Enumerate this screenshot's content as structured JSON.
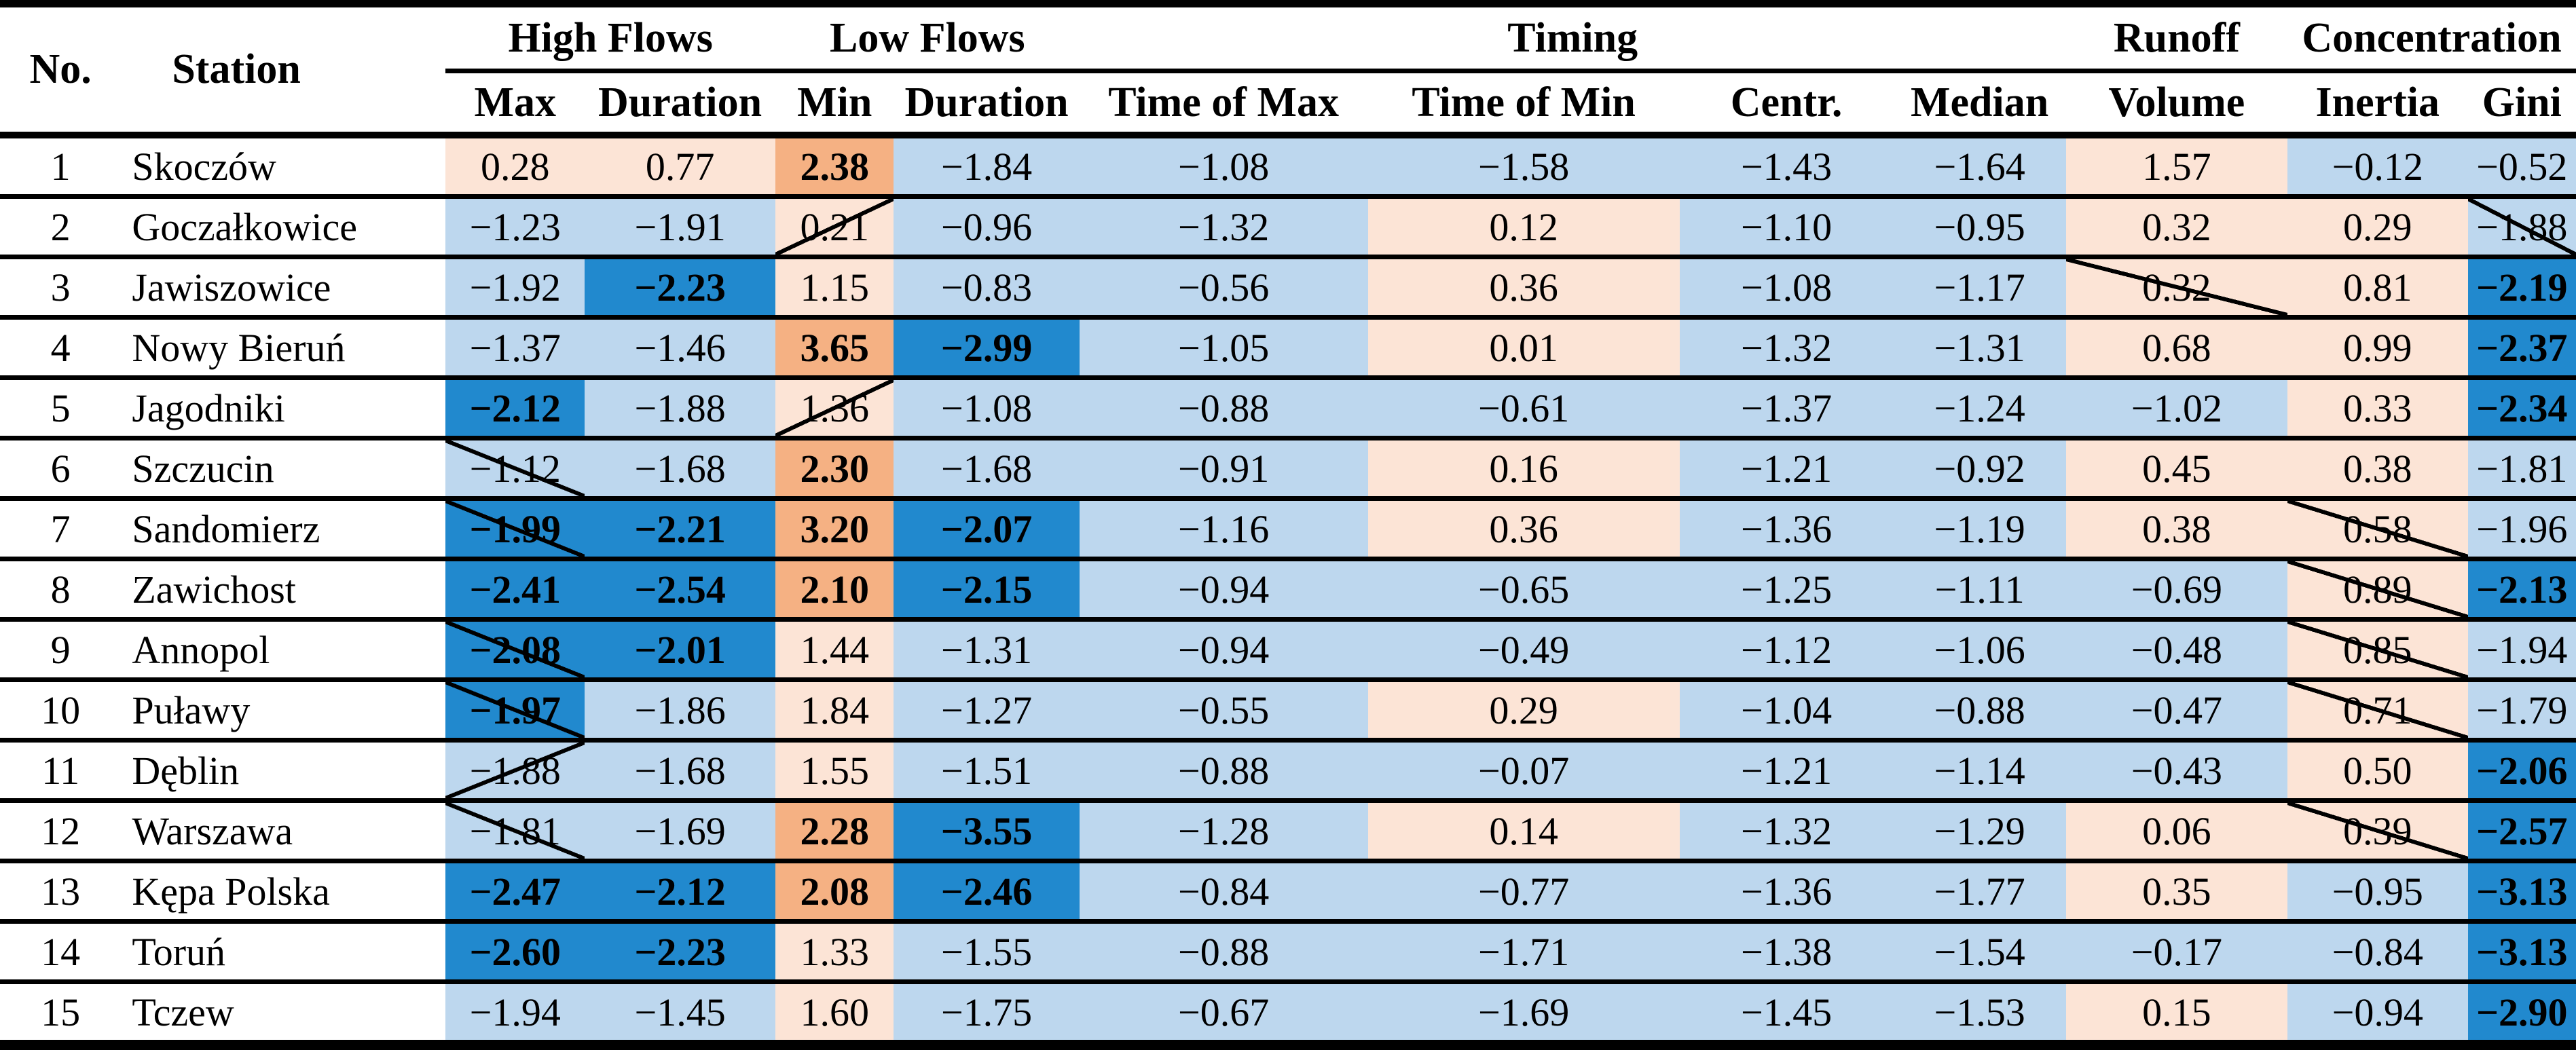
{
  "table": {
    "header": {
      "no": "No.",
      "station": "Station",
      "groups": [
        {
          "label": "High Flows",
          "span": 2
        },
        {
          "label": "Low Flows",
          "span": 2
        },
        {
          "label": "Timing",
          "span": 4
        },
        {
          "label": "Runoff",
          "span": 1
        },
        {
          "label": "Concentration",
          "span": 2
        }
      ],
      "columns": [
        "Max",
        "Duration",
        "Min",
        "Duration",
        "Time of Max",
        "Time of Min",
        "Centr.",
        "Median",
        "Volume",
        "Inertia",
        "Gini"
      ]
    },
    "cell_colors": {
      "lb": "#BDD7EE",
      "db": "#2189CE",
      "lp": "#FCE4D6",
      "do": "#F5B183"
    },
    "rows": [
      {
        "no": "1",
        "station": "Skoczów",
        "cells": [
          {
            "v": "0.28",
            "c": "lp"
          },
          {
            "v": "0.77",
            "c": "lp"
          },
          {
            "v": "2.38",
            "c": "do"
          },
          {
            "v": "−1.84",
            "c": "lb"
          },
          {
            "v": "−1.08",
            "c": "lb"
          },
          {
            "v": "−1.58",
            "c": "lb"
          },
          {
            "v": "−1.43",
            "c": "lb"
          },
          {
            "v": "−1.64",
            "c": "lb"
          },
          {
            "v": "1.57",
            "c": "lp"
          },
          {
            "v": "−0.12",
            "c": "lb"
          },
          {
            "v": "−0.52",
            "c": "lb"
          }
        ]
      },
      {
        "no": "2",
        "station": "Goczałkowice",
        "cells": [
          {
            "v": "−1.23",
            "c": "lb"
          },
          {
            "v": "−1.91",
            "c": "lb"
          },
          {
            "v": "0.21",
            "c": "lp",
            "s": "down"
          },
          {
            "v": "−0.96",
            "c": "lb"
          },
          {
            "v": "−1.32",
            "c": "lb"
          },
          {
            "v": "0.12",
            "c": "lp"
          },
          {
            "v": "−1.10",
            "c": "lb"
          },
          {
            "v": "−0.95",
            "c": "lb"
          },
          {
            "v": "0.32",
            "c": "lp"
          },
          {
            "v": "0.29",
            "c": "lp"
          },
          {
            "v": "−1.88",
            "c": "lb",
            "s": "up"
          }
        ]
      },
      {
        "no": "3",
        "station": "Jawiszowice",
        "cells": [
          {
            "v": "−1.92",
            "c": "lb"
          },
          {
            "v": "−2.23",
            "c": "db"
          },
          {
            "v": "1.15",
            "c": "lp"
          },
          {
            "v": "−0.83",
            "c": "lb"
          },
          {
            "v": "−0.56",
            "c": "lb"
          },
          {
            "v": "0.36",
            "c": "lp"
          },
          {
            "v": "−1.08",
            "c": "lb"
          },
          {
            "v": "−1.17",
            "c": "lb"
          },
          {
            "v": "0.32",
            "c": "lp",
            "s": "up"
          },
          {
            "v": "0.81",
            "c": "lp"
          },
          {
            "v": "−2.19",
            "c": "db"
          }
        ]
      },
      {
        "no": "4",
        "station": "Nowy Bieruń",
        "cells": [
          {
            "v": "−1.37",
            "c": "lb"
          },
          {
            "v": "−1.46",
            "c": "lb"
          },
          {
            "v": "3.65",
            "c": "do"
          },
          {
            "v": "−2.99",
            "c": "db"
          },
          {
            "v": "−1.05",
            "c": "lb"
          },
          {
            "v": "0.01",
            "c": "lp"
          },
          {
            "v": "−1.32",
            "c": "lb"
          },
          {
            "v": "−1.31",
            "c": "lb"
          },
          {
            "v": "0.68",
            "c": "lp"
          },
          {
            "v": "0.99",
            "c": "lp"
          },
          {
            "v": "−2.37",
            "c": "db"
          }
        ]
      },
      {
        "no": "5",
        "station": "Jagodniki",
        "cells": [
          {
            "v": "−2.12",
            "c": "db"
          },
          {
            "v": "−1.88",
            "c": "lb"
          },
          {
            "v": "1.36",
            "c": "lp",
            "s": "down"
          },
          {
            "v": "−1.08",
            "c": "lb"
          },
          {
            "v": "−0.88",
            "c": "lb"
          },
          {
            "v": "−0.61",
            "c": "lb"
          },
          {
            "v": "−1.37",
            "c": "lb"
          },
          {
            "v": "−1.24",
            "c": "lb"
          },
          {
            "v": "−1.02",
            "c": "lb"
          },
          {
            "v": "0.33",
            "c": "lp"
          },
          {
            "v": "−2.34",
            "c": "db"
          }
        ]
      },
      {
        "no": "6",
        "station": "Szczucin",
        "cells": [
          {
            "v": "−1.12",
            "c": "lb",
            "s": "up"
          },
          {
            "v": "−1.68",
            "c": "lb"
          },
          {
            "v": "2.30",
            "c": "do"
          },
          {
            "v": "−1.68",
            "c": "lb"
          },
          {
            "v": "−0.91",
            "c": "lb"
          },
          {
            "v": "0.16",
            "c": "lp"
          },
          {
            "v": "−1.21",
            "c": "lb"
          },
          {
            "v": "−0.92",
            "c": "lb"
          },
          {
            "v": "0.45",
            "c": "lp"
          },
          {
            "v": "0.38",
            "c": "lp"
          },
          {
            "v": "−1.81",
            "c": "lb"
          }
        ]
      },
      {
        "no": "7",
        "station": "Sandomierz",
        "cells": [
          {
            "v": "−1.99",
            "c": "db",
            "s": "up"
          },
          {
            "v": "−2.21",
            "c": "db"
          },
          {
            "v": "3.20",
            "c": "do"
          },
          {
            "v": "−2.07",
            "c": "db"
          },
          {
            "v": "−1.16",
            "c": "lb"
          },
          {
            "v": "0.36",
            "c": "lp"
          },
          {
            "v": "−1.36",
            "c": "lb"
          },
          {
            "v": "−1.19",
            "c": "lb"
          },
          {
            "v": "0.38",
            "c": "lp"
          },
          {
            "v": "0.58",
            "c": "lp",
            "s": "up"
          },
          {
            "v": "−1.96",
            "c": "lb"
          }
        ]
      },
      {
        "no": "8",
        "station": "Zawichost",
        "cells": [
          {
            "v": "−2.41",
            "c": "db"
          },
          {
            "v": "−2.54",
            "c": "db"
          },
          {
            "v": "2.10",
            "c": "do"
          },
          {
            "v": "−2.15",
            "c": "db"
          },
          {
            "v": "−0.94",
            "c": "lb"
          },
          {
            "v": "−0.65",
            "c": "lb"
          },
          {
            "v": "−1.25",
            "c": "lb"
          },
          {
            "v": "−1.11",
            "c": "lb"
          },
          {
            "v": "−0.69",
            "c": "lb"
          },
          {
            "v": "0.89",
            "c": "lp",
            "s": "up"
          },
          {
            "v": "−2.13",
            "c": "db"
          }
        ]
      },
      {
        "no": "9",
        "station": "Annopol",
        "cells": [
          {
            "v": "−2.08",
            "c": "db",
            "s": "up"
          },
          {
            "v": "−2.01",
            "c": "db"
          },
          {
            "v": "1.44",
            "c": "lp"
          },
          {
            "v": "−1.31",
            "c": "lb"
          },
          {
            "v": "−0.94",
            "c": "lb"
          },
          {
            "v": "−0.49",
            "c": "lb"
          },
          {
            "v": "−1.12",
            "c": "lb"
          },
          {
            "v": "−1.06",
            "c": "lb"
          },
          {
            "v": "−0.48",
            "c": "lb"
          },
          {
            "v": "0.85",
            "c": "lp",
            "s": "up"
          },
          {
            "v": "−1.94",
            "c": "lb"
          }
        ]
      },
      {
        "no": "10",
        "station": "Puławy",
        "cells": [
          {
            "v": "−1.97",
            "c": "db",
            "s": "up"
          },
          {
            "v": "−1.86",
            "c": "lb"
          },
          {
            "v": "1.84",
            "c": "lp"
          },
          {
            "v": "−1.27",
            "c": "lb"
          },
          {
            "v": "−0.55",
            "c": "lb"
          },
          {
            "v": "0.29",
            "c": "lp"
          },
          {
            "v": "−1.04",
            "c": "lb"
          },
          {
            "v": "−0.88",
            "c": "lb"
          },
          {
            "v": "−0.47",
            "c": "lb"
          },
          {
            "v": "0.71",
            "c": "lp",
            "s": "up"
          },
          {
            "v": "−1.79",
            "c": "lb"
          }
        ]
      },
      {
        "no": "11",
        "station": "Dęblin",
        "cells": [
          {
            "v": "−1.88",
            "c": "lb",
            "s": "down"
          },
          {
            "v": "−1.68",
            "c": "lb"
          },
          {
            "v": "1.55",
            "c": "lp"
          },
          {
            "v": "−1.51",
            "c": "lb"
          },
          {
            "v": "−0.88",
            "c": "lb"
          },
          {
            "v": "−0.07",
            "c": "lb"
          },
          {
            "v": "−1.21",
            "c": "lb"
          },
          {
            "v": "−1.14",
            "c": "lb"
          },
          {
            "v": "−0.43",
            "c": "lb"
          },
          {
            "v": "0.50",
            "c": "lp"
          },
          {
            "v": "−2.06",
            "c": "db"
          }
        ]
      },
      {
        "no": "12",
        "station": "Warszawa",
        "cells": [
          {
            "v": "−1.81",
            "c": "lb",
            "s": "up"
          },
          {
            "v": "−1.69",
            "c": "lb"
          },
          {
            "v": "2.28",
            "c": "do"
          },
          {
            "v": "−3.55",
            "c": "db"
          },
          {
            "v": "−1.28",
            "c": "lb"
          },
          {
            "v": "0.14",
            "c": "lp"
          },
          {
            "v": "−1.32",
            "c": "lb"
          },
          {
            "v": "−1.29",
            "c": "lb"
          },
          {
            "v": "0.06",
            "c": "lp"
          },
          {
            "v": "0.39",
            "c": "lp",
            "s": "up"
          },
          {
            "v": "−2.57",
            "c": "db"
          }
        ]
      },
      {
        "no": "13",
        "station": "Kępa Polska",
        "cells": [
          {
            "v": "−2.47",
            "c": "db"
          },
          {
            "v": "−2.12",
            "c": "db"
          },
          {
            "v": "2.08",
            "c": "do"
          },
          {
            "v": "−2.46",
            "c": "db"
          },
          {
            "v": "−0.84",
            "c": "lb"
          },
          {
            "v": "−0.77",
            "c": "lb"
          },
          {
            "v": "−1.36",
            "c": "lb"
          },
          {
            "v": "−1.77",
            "c": "lb"
          },
          {
            "v": "0.35",
            "c": "lp"
          },
          {
            "v": "−0.95",
            "c": "lb"
          },
          {
            "v": "−3.13",
            "c": "db"
          }
        ]
      },
      {
        "no": "14",
        "station": "Toruń",
        "cells": [
          {
            "v": "−2.60",
            "c": "db"
          },
          {
            "v": "−2.23",
            "c": "db"
          },
          {
            "v": "1.33",
            "c": "lp"
          },
          {
            "v": "−1.55",
            "c": "lb"
          },
          {
            "v": "−0.88",
            "c": "lb"
          },
          {
            "v": "−1.71",
            "c": "lb"
          },
          {
            "v": "−1.38",
            "c": "lb"
          },
          {
            "v": "−1.54",
            "c": "lb"
          },
          {
            "v": "−0.17",
            "c": "lb"
          },
          {
            "v": "−0.84",
            "c": "lb"
          },
          {
            "v": "−3.13",
            "c": "db"
          }
        ]
      },
      {
        "no": "15",
        "station": "Tczew",
        "cells": [
          {
            "v": "−1.94",
            "c": "lb"
          },
          {
            "v": "−1.45",
            "c": "lb"
          },
          {
            "v": "1.60",
            "c": "lp"
          },
          {
            "v": "−1.75",
            "c": "lb"
          },
          {
            "v": "−0.67",
            "c": "lb"
          },
          {
            "v": "−1.69",
            "c": "lb"
          },
          {
            "v": "−1.45",
            "c": "lb"
          },
          {
            "v": "−1.53",
            "c": "lb"
          },
          {
            "v": "0.15",
            "c": "lp"
          },
          {
            "v": "−0.94",
            "c": "lb"
          },
          {
            "v": "−2.90",
            "c": "db"
          }
        ]
      }
    ]
  }
}
